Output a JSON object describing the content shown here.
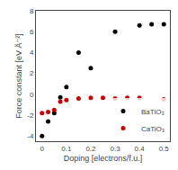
{
  "chart_data": {
    "type": "scatter",
    "xlabel": "Doping [electrons/f.u.]",
    "ylabel": "Force constant [eV Å⁻²]",
    "series": [
      {
        "name": "BaTiO₃",
        "color": "#000000",
        "x": [
          0.0,
          0.025,
          0.05,
          0.075,
          0.1,
          0.15,
          0.2,
          0.3,
          0.4,
          0.45,
          0.5
        ],
        "values": [
          -4.0,
          -2.6,
          -1.8,
          -0.3,
          0.7,
          4.0,
          2.5,
          6.0,
          6.6,
          6.7,
          6.7
        ]
      },
      {
        "name": "CaTiO₃",
        "color": "#cc0000",
        "x": [
          0.0,
          0.025,
          0.05,
          0.075,
          0.1,
          0.15,
          0.2,
          0.25,
          0.3,
          0.35,
          0.4,
          0.5
        ],
        "values": [
          -1.8,
          -1.7,
          -1.5,
          -0.7,
          -0.55,
          -0.4,
          -0.35,
          -0.35,
          -0.4,
          -0.35,
          -0.35,
          -0.5
        ]
      }
    ],
    "xlim": [
      -0.025,
      0.525
    ],
    "ylim": [
      -4.5,
      8.0
    ],
    "xticks": [
      0,
      0.1,
      0.2,
      0.3,
      0.4,
      0.5
    ],
    "yticks": [
      -4,
      -2,
      0,
      2,
      4,
      6,
      8
    ],
    "grid": false,
    "legend": "lower right"
  }
}
